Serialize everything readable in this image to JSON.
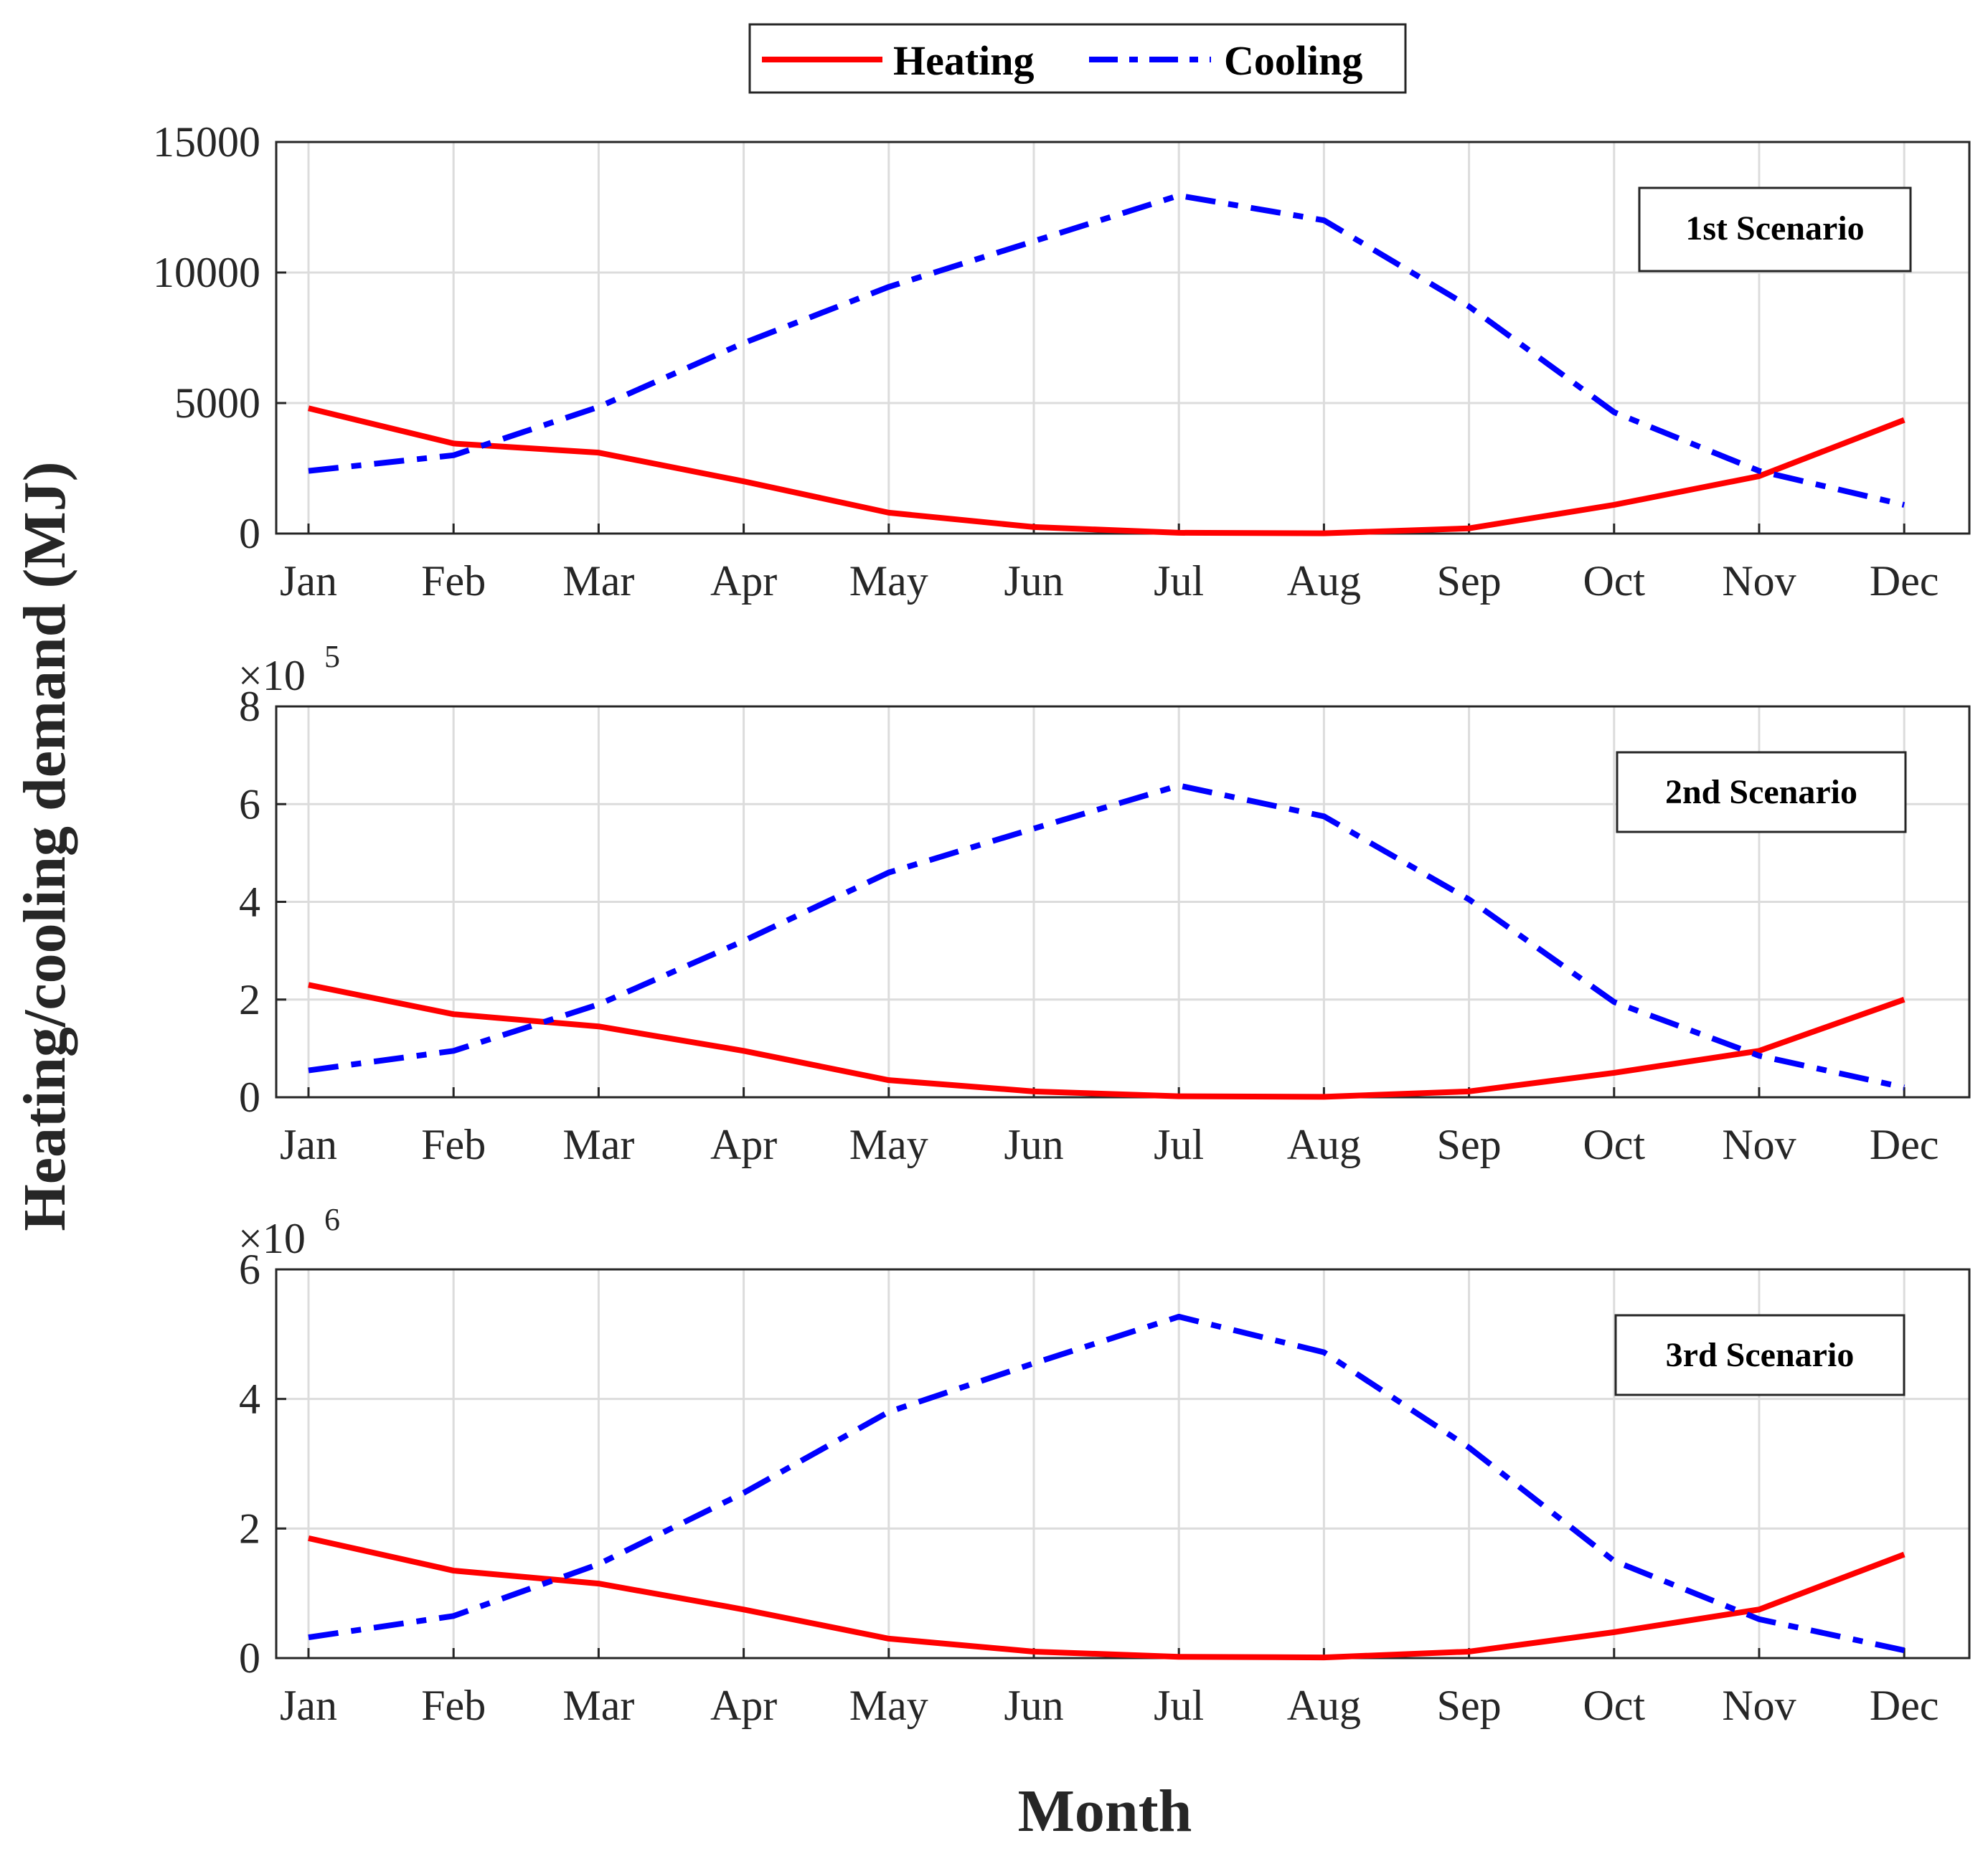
{
  "colors": {
    "heating": "#ff0000",
    "cooling": "#0000ff",
    "axis": "#262626",
    "grid": "#dcdcdc"
  },
  "figure": {
    "ylabel": "Heating/cooling demand (MJ)",
    "xlabel": "Month"
  },
  "legend": {
    "heating_label": "Heating",
    "cooling_label": "Cooling"
  },
  "chart_data": [
    {
      "type": "line",
      "title": "1st Scenario",
      "categories": [
        "Jan",
        "Feb",
        "Mar",
        "Apr",
        "May",
        "Jun",
        "Jul",
        "Aug",
        "Sep",
        "Oct",
        "Nov",
        "Dec"
      ],
      "exponent": "",
      "ylim": [
        0,
        15000
      ],
      "yticks": [
        0,
        5000,
        10000,
        15000
      ],
      "ytick_labels": [
        "0",
        "5000",
        "10000",
        "15000"
      ],
      "grid": true,
      "series": [
        {
          "name": "Heating",
          "values": [
            4800,
            3450,
            3100,
            2000,
            800,
            250,
            30,
            10,
            200,
            1100,
            2200,
            4350
          ]
        },
        {
          "name": "Cooling",
          "values": [
            2400,
            3000,
            4850,
            7300,
            9450,
            11200,
            12950,
            12000,
            8700,
            4650,
            2400,
            1100
          ]
        }
      ]
    },
    {
      "type": "line",
      "title": "2nd Scenario",
      "categories": [
        "Jan",
        "Feb",
        "Mar",
        "Apr",
        "May",
        "Jun",
        "Jul",
        "Aug",
        "Sep",
        "Oct",
        "Nov",
        "Dec"
      ],
      "exponent": "5",
      "ylim": [
        0,
        8
      ],
      "yticks": [
        0,
        2,
        4,
        6,
        8
      ],
      "ytick_labels": [
        "0",
        "2",
        "4",
        "6",
        "8"
      ],
      "grid": true,
      "series": [
        {
          "name": "Heating",
          "values": [
            2.3,
            1.7,
            1.45,
            0.95,
            0.35,
            0.12,
            0.02,
            0.01,
            0.12,
            0.5,
            0.95,
            2.0
          ]
        },
        {
          "name": "Cooling",
          "values": [
            0.55,
            0.95,
            1.9,
            3.2,
            4.6,
            5.5,
            6.38,
            5.75,
            4.05,
            1.95,
            0.85,
            0.2
          ]
        }
      ]
    },
    {
      "type": "line",
      "title": "3rd Scenario",
      "categories": [
        "Jan",
        "Feb",
        "Mar",
        "Apr",
        "May",
        "Jun",
        "Jul",
        "Aug",
        "Sep",
        "Oct",
        "Nov",
        "Dec"
      ],
      "exponent": "6",
      "ylim": [
        0,
        6
      ],
      "yticks": [
        0,
        2,
        4,
        6
      ],
      "ytick_labels": [
        "0",
        "2",
        "4",
        "6"
      ],
      "grid": true,
      "series": [
        {
          "name": "Heating",
          "values": [
            1.85,
            1.35,
            1.15,
            0.75,
            0.3,
            0.1,
            0.02,
            0.01,
            0.1,
            0.4,
            0.75,
            1.6
          ]
        },
        {
          "name": "Cooling",
          "values": [
            0.32,
            0.65,
            1.45,
            2.55,
            3.8,
            4.55,
            5.27,
            4.72,
            3.25,
            1.5,
            0.6,
            0.12
          ]
        }
      ]
    }
  ]
}
